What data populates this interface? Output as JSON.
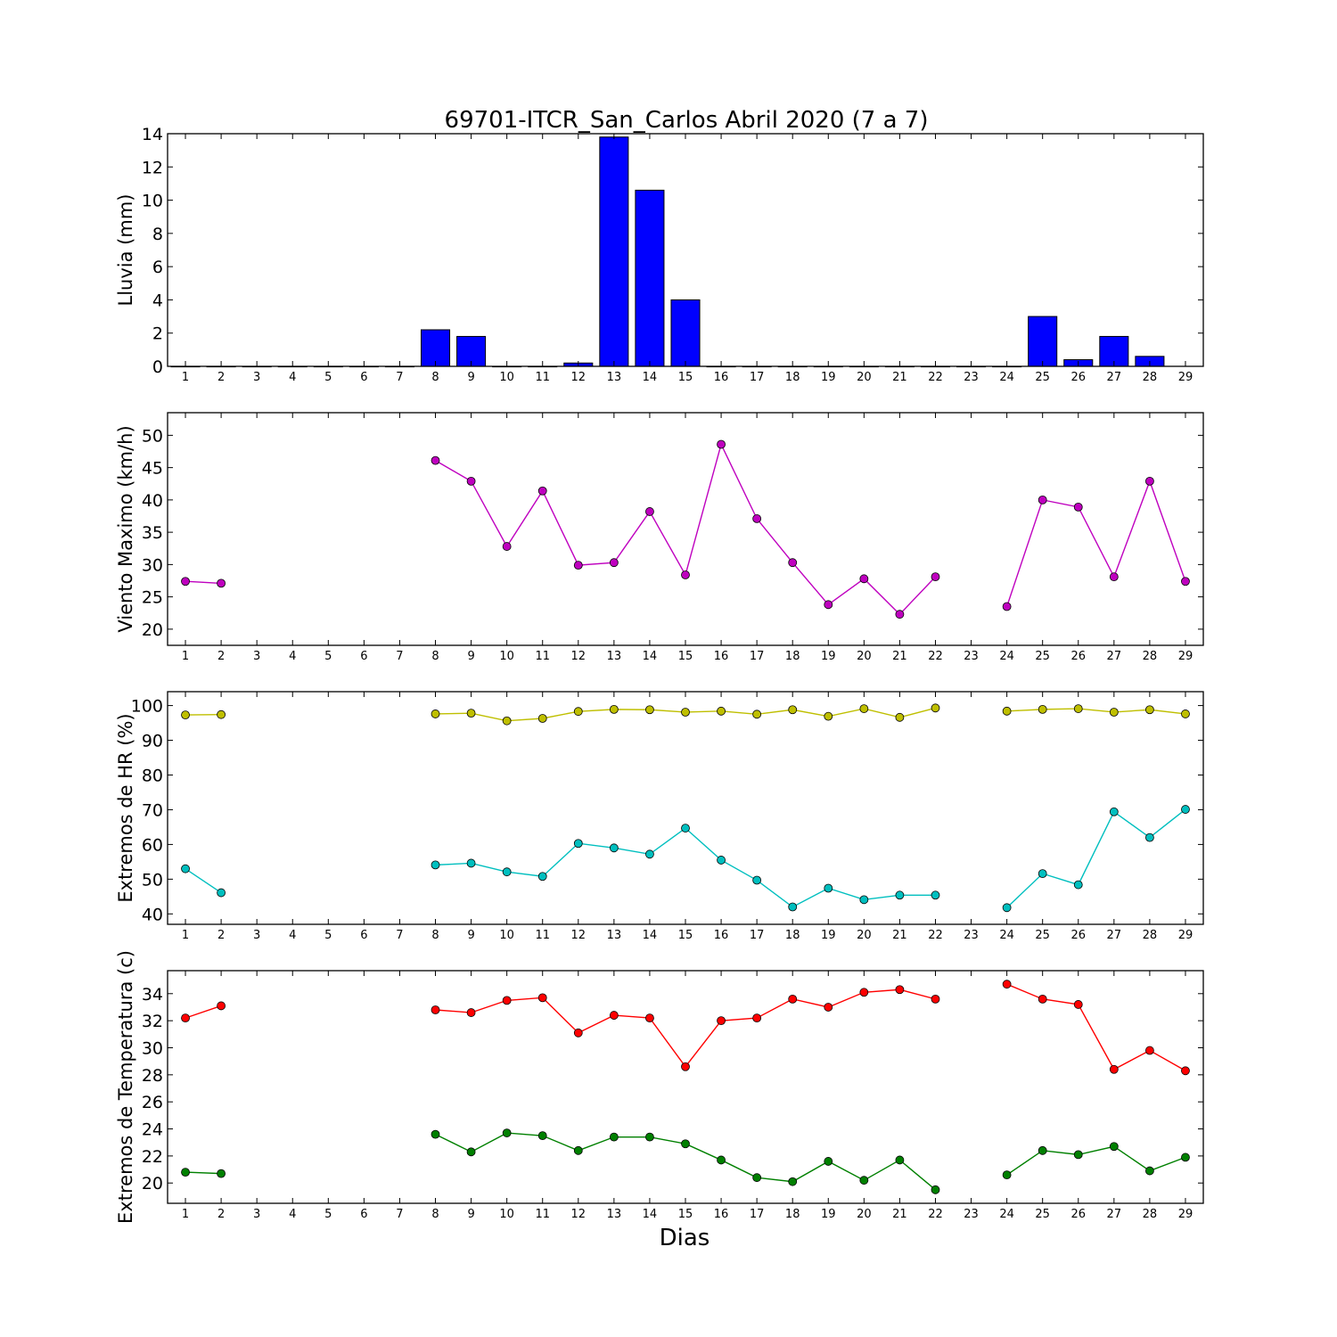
{
  "title": "69701-ITCR_San_Carlos Abril 2020  (7 a 7)",
  "xlabel": "Dias",
  "colors": {
    "rain": "#0000ff",
    "wind": "#bf00bf",
    "hr_max": "#bfbf00",
    "hr_min": "#00bfbf",
    "temp_max": "#ff0000",
    "temp_min": "#008000"
  },
  "chart_data": [
    {
      "type": "bar",
      "ylabel": "Lluvia (mm)",
      "xlim": [
        0.5,
        29.5
      ],
      "ylim": [
        0,
        14
      ],
      "yticks": [
        0,
        2,
        4,
        6,
        8,
        10,
        12,
        14
      ],
      "x": [
        1,
        2,
        3,
        4,
        5,
        6,
        7,
        8,
        9,
        10,
        11,
        12,
        13,
        14,
        15,
        16,
        17,
        18,
        19,
        20,
        21,
        22,
        23,
        24,
        25,
        26,
        27,
        28,
        29
      ],
      "values": [
        0,
        0,
        0,
        0,
        0,
        0,
        0,
        2.2,
        1.8,
        0,
        0,
        0.2,
        13.8,
        10.6,
        4.0,
        0,
        0,
        0,
        0,
        0,
        0,
        0,
        0,
        0,
        3.0,
        0.4,
        1.8,
        0.6,
        null
      ],
      "grid": false
    },
    {
      "type": "line",
      "ylabel": "Viento Maximo (km/h)",
      "xlim": [
        0.5,
        29.5
      ],
      "ylim": [
        17.5,
        53.5
      ],
      "yticks": [
        20,
        25,
        30,
        35,
        40,
        45,
        50
      ],
      "x": [
        1,
        2,
        3,
        4,
        5,
        6,
        7,
        8,
        9,
        10,
        11,
        12,
        13,
        14,
        15,
        16,
        17,
        18,
        19,
        20,
        21,
        22,
        23,
        24,
        25,
        26,
        27,
        28,
        29
      ],
      "series": [
        {
          "color_key": "wind",
          "values": [
            27.4,
            27.1,
            null,
            null,
            null,
            null,
            null,
            46.1,
            42.9,
            32.8,
            41.4,
            29.9,
            30.3,
            38.2,
            28.4,
            48.6,
            37.1,
            30.3,
            23.8,
            27.8,
            22.3,
            28.1,
            null,
            23.5,
            40.0,
            38.9,
            28.1,
            42.9,
            27.4
          ]
        }
      ],
      "grid": false
    },
    {
      "type": "line",
      "ylabel": "Extremos de HR (%)",
      "xlim": [
        0.5,
        29.5
      ],
      "ylim": [
        37,
        104
      ],
      "yticks": [
        40,
        50,
        60,
        70,
        80,
        90,
        100
      ],
      "x": [
        1,
        2,
        3,
        4,
        5,
        6,
        7,
        8,
        9,
        10,
        11,
        12,
        13,
        14,
        15,
        16,
        17,
        18,
        19,
        20,
        21,
        22,
        23,
        24,
        25,
        26,
        27,
        28,
        29
      ],
      "series": [
        {
          "color_key": "hr_max",
          "values": [
            97.3,
            97.4,
            null,
            null,
            null,
            null,
            null,
            97.6,
            97.8,
            95.6,
            96.3,
            98.3,
            98.9,
            98.8,
            98.1,
            98.4,
            97.5,
            98.8,
            96.9,
            99.1,
            96.6,
            99.3,
            null,
            98.4,
            98.9,
            99.1,
            98.1,
            98.8,
            97.6
          ]
        },
        {
          "color_key": "hr_min",
          "values": [
            53.0,
            46.1,
            null,
            null,
            null,
            null,
            null,
            54.1,
            54.6,
            52.1,
            50.8,
            60.3,
            59.0,
            57.2,
            64.7,
            55.5,
            49.7,
            42.0,
            47.4,
            44.1,
            45.4,
            45.4,
            null,
            41.8,
            51.6,
            48.4,
            69.4,
            62.0,
            70.1
          ]
        }
      ],
      "grid": false
    },
    {
      "type": "line",
      "ylabel": "Extremos de Temperatura (c)",
      "xlim": [
        0.5,
        29.5
      ],
      "ylim": [
        18.5,
        35.7
      ],
      "yticks": [
        20,
        22,
        24,
        26,
        28,
        30,
        32,
        34
      ],
      "x": [
        1,
        2,
        3,
        4,
        5,
        6,
        7,
        8,
        9,
        10,
        11,
        12,
        13,
        14,
        15,
        16,
        17,
        18,
        19,
        20,
        21,
        22,
        23,
        24,
        25,
        26,
        27,
        28,
        29
      ],
      "series": [
        {
          "color_key": "temp_max",
          "values": [
            32.2,
            33.1,
            null,
            null,
            null,
            null,
            null,
            32.8,
            32.6,
            33.5,
            33.7,
            31.1,
            32.4,
            32.2,
            28.6,
            32.0,
            32.2,
            33.6,
            33.0,
            34.1,
            34.3,
            33.6,
            null,
            34.7,
            33.6,
            33.2,
            28.4,
            29.8,
            28.3
          ]
        },
        {
          "color_key": "temp_min",
          "values": [
            20.8,
            20.7,
            null,
            null,
            null,
            null,
            null,
            23.6,
            22.3,
            23.7,
            23.5,
            22.4,
            23.4,
            23.4,
            22.9,
            21.7,
            20.4,
            20.1,
            21.6,
            20.2,
            21.7,
            19.5,
            null,
            20.6,
            22.4,
            22.1,
            22.7,
            20.9,
            21.9
          ]
        }
      ],
      "grid": false
    }
  ]
}
